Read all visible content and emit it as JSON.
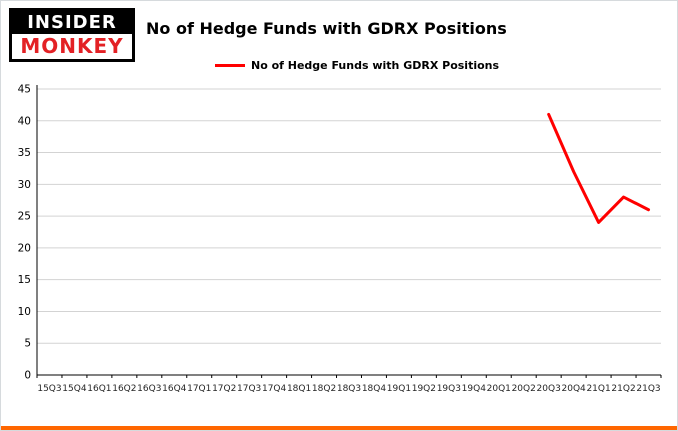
{
  "logo": {
    "line1": "INSIDER",
    "line2": "MONKEY"
  },
  "header": {
    "title": "No of Hedge Funds with GDRX Positions"
  },
  "legend": {
    "label": "No of Hedge Funds with GDRX Positions",
    "color": "#ff0000"
  },
  "chart_data": {
    "type": "line",
    "title": "No of Hedge Funds with GDRX Positions",
    "categories": [
      "15Q3",
      "15Q4",
      "16Q1",
      "16Q2",
      "16Q3",
      "16Q4",
      "17Q1",
      "17Q2",
      "17Q3",
      "17Q4",
      "18Q1",
      "18Q2",
      "18Q3",
      "18Q4",
      "19Q1",
      "19Q2",
      "19Q3",
      "19Q4",
      "20Q1",
      "20Q2",
      "20Q3",
      "20Q4",
      "21Q1",
      "21Q2",
      "21Q3"
    ],
    "series": [
      {
        "name": "No of Hedge Funds with GDRX Positions",
        "color": "#ff0000",
        "values": [
          null,
          null,
          null,
          null,
          null,
          null,
          null,
          null,
          null,
          null,
          null,
          null,
          null,
          null,
          null,
          null,
          null,
          null,
          null,
          null,
          41,
          32,
          24,
          28,
          26
        ]
      }
    ],
    "xlabel": "",
    "ylabel": "",
    "ylim": [
      0,
      45
    ],
    "ytick_step": 5,
    "grid": true,
    "grid_color": "#d3d3d3",
    "axis_color": "#000000",
    "legend_position": "top"
  }
}
